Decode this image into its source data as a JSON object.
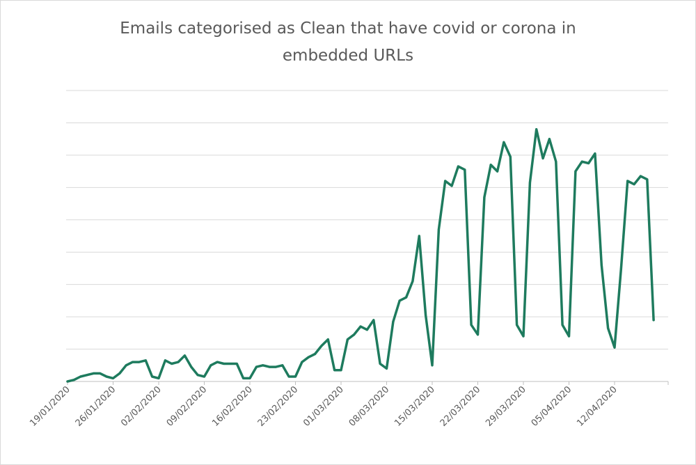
{
  "chart_data": {
    "type": "line",
    "title_lines": [
      "Emails categorised as Clean that have covid or corona in",
      "embedded URLs"
    ],
    "xlabel": "",
    "ylabel": "",
    "x_tick_labels": [
      "19/01/2020",
      "26/01/2020",
      "02/02/2020",
      "09/02/2020",
      "16/02/2020",
      "23/02/2020",
      "01/03/2020",
      "08/03/2020",
      "15/03/2020",
      "22/03/2020",
      "29/03/2020",
      "05/04/2020",
      "12/04/2020"
    ],
    "y_axis_labels_shown": false,
    "ylim": [
      0,
      9
    ],
    "grid": true,
    "gridline_count": 9,
    "series_color": "#1e7b5e",
    "series": [
      {
        "x_start": "19/01/2020",
        "interval": "1 day",
        "values": [
          0.0,
          0.05,
          0.15,
          0.2,
          0.25,
          0.25,
          0.15,
          0.1,
          0.25,
          0.5,
          0.6,
          0.6,
          0.65,
          0.15,
          0.1,
          0.65,
          0.55,
          0.6,
          0.8,
          0.45,
          0.2,
          0.15,
          0.5,
          0.6,
          0.55,
          0.55,
          0.55,
          0.1,
          0.1,
          0.45,
          0.5,
          0.45,
          0.45,
          0.5,
          0.15,
          0.15,
          0.6,
          0.75,
          0.85,
          1.1,
          1.3,
          0.35,
          0.35,
          1.3,
          1.45,
          1.7,
          1.6,
          1.9,
          0.55,
          0.4,
          1.85,
          2.5,
          2.6,
          3.1,
          4.5,
          2.05,
          0.5,
          4.7,
          6.2,
          6.05,
          6.65,
          6.55,
          1.75,
          1.45,
          5.7,
          6.7,
          6.5,
          7.4,
          6.95,
          1.75,
          1.4,
          6.15,
          7.8,
          6.9,
          7.5,
          6.8,
          1.75,
          1.4,
          6.5,
          6.8,
          6.75,
          7.05,
          3.6,
          1.65,
          1.05,
          3.5,
          6.2,
          6.1,
          6.35,
          6.25,
          1.9
        ]
      }
    ]
  }
}
